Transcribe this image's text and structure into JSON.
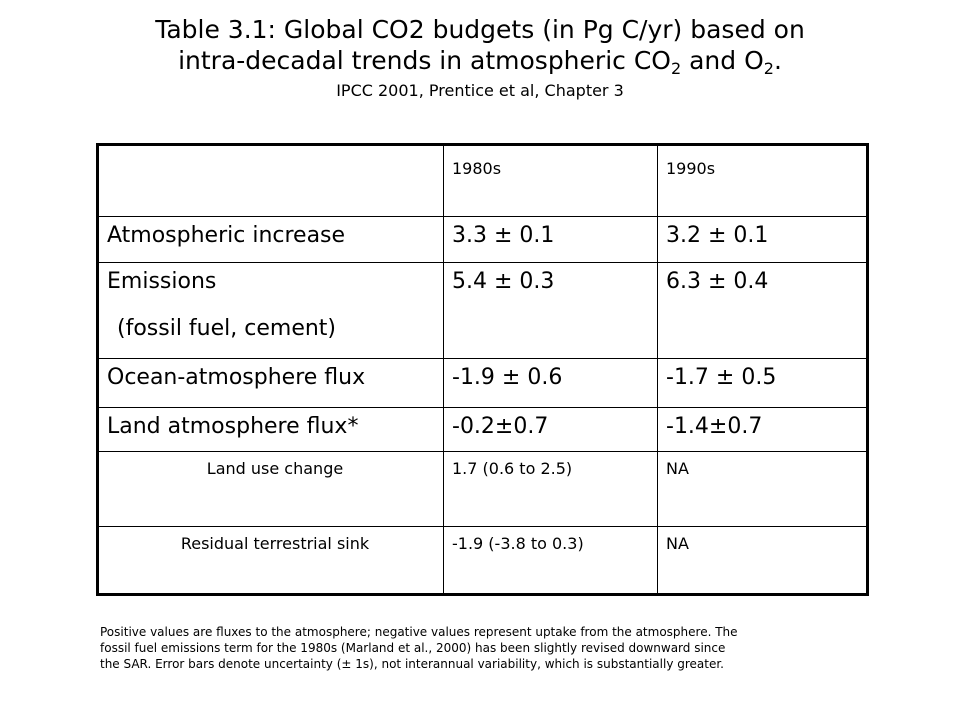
{
  "title": {
    "line1": "Table 3.1: Global CO2 budgets (in Pg C/yr) based on",
    "line2_prefix": "intra-decadal trends in atmospheric CO",
    "line2_sub1": "2",
    "line2_mid": " and O",
    "line2_sub2": "2",
    "line2_suffix": ".",
    "source": "IPCC 2001, Prentice et al, Chapter 3"
  },
  "table": {
    "header": {
      "blank": "",
      "col1": "1980s",
      "col2": "1990s"
    },
    "rows": [
      {
        "label": "Atmospheric increase",
        "v1980s": "3.3 ± 0.1",
        "v1990s": "3.2 ± 0.1"
      },
      {
        "label": "Emissions",
        "label_line2": "(fossil fuel, cement)",
        "v1980s": "5.4 ± 0.3",
        "v1990s": "6.3 ± 0.4"
      },
      {
        "label": "Ocean-atmosphere flux",
        "v1980s": "-1.9 ± 0.6",
        "v1990s": "-1.7 ± 0.5"
      },
      {
        "label": "Land atmosphere flux*",
        "v1980s": "-0.2±0.7",
        "v1990s": "-1.4±0.7"
      },
      {
        "label": "Land use change",
        "v1980s": "1.7 (0.6 to 2.5)",
        "v1990s": "NA"
      },
      {
        "label": "Residual terrestrial sink",
        "v1980s": "-1.9 (-3.8 to 0.3)",
        "v1990s": "NA"
      }
    ]
  },
  "footnote": {
    "line1": "Positive values are fluxes to the atmosphere; negative values represent uptake from the atmosphere. The",
    "line2": "fossil fuel emissions term for the 1980s (Marland et al., 2000) has been slightly revised downward since",
    "line3": "the SAR. Error bars denote uncertainty (± 1s), not interannual variability, which is substantially greater."
  }
}
